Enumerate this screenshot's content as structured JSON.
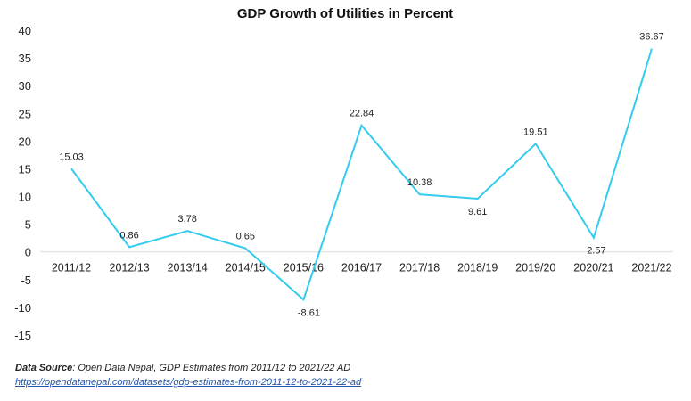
{
  "chart_data": {
    "type": "line",
    "title": "GDP Growth of Utilities in Percent",
    "xlabel": "",
    "ylabel": "",
    "categories": [
      "2011/12",
      "2012/13",
      "2013/14",
      "2014/15",
      "2015/16",
      "2016/17",
      "2017/18",
      "2018/19",
      "2019/20",
      "2020/21",
      "2021/22"
    ],
    "series": [
      {
        "values": [
          15.03,
          0.86,
          3.78,
          0.65,
          -8.61,
          22.84,
          10.38,
          9.61,
          19.51,
          2.57,
          36.67
        ]
      }
    ],
    "data_labels": [
      "15.03",
      "0.86",
      "3.78",
      "0.65",
      "-8.61",
      "22.84",
      "10.38",
      "9.61",
      "19.51",
      "2.57",
      "36.67"
    ],
    "ylim": [
      -15,
      40
    ],
    "yticks": [
      "40",
      "35",
      "30",
      "25",
      "20",
      "15",
      "10",
      "5",
      "0",
      "-5",
      "-10",
      "-15"
    ],
    "grid": false,
    "legend": "none",
    "line_color": "#33ccee"
  },
  "source": {
    "label": "Data Source",
    "text": ": Open Data Nepal,  GDP Estimates from 2011/12 to 2021/22 AD",
    "link": "https://opendatanepal.com/datasets/gdp-estimates-from-2011-12-to-2021-22-ad"
  }
}
